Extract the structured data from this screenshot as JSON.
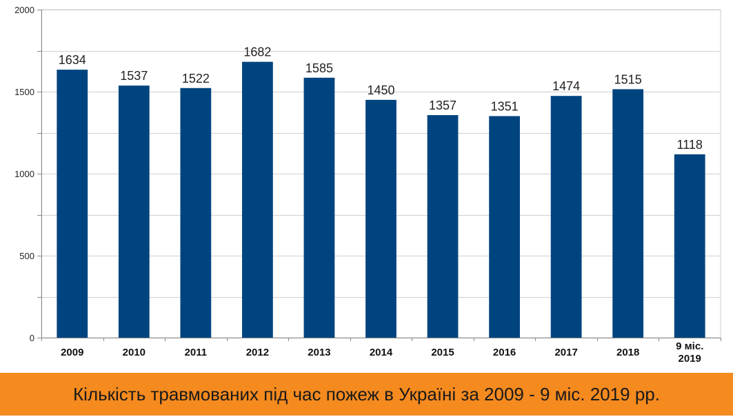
{
  "caption": {
    "text": "Кількість травмованих під час пожеж в Україні за 2009 - 9 міс. 2019 рр.",
    "background_color": "#f58a1f"
  },
  "chart_data": {
    "type": "bar",
    "categories": [
      "2009",
      "2010",
      "2011",
      "2012",
      "2013",
      "2014",
      "2015",
      "2016",
      "2017",
      "2018",
      "9 міс. 2019"
    ],
    "values": [
      1634,
      1537,
      1522,
      1682,
      1585,
      1450,
      1357,
      1351,
      1474,
      1515,
      1118
    ],
    "title": "",
    "xlabel": "",
    "ylabel": "",
    "ylim": [
      0,
      2000
    ],
    "yticks": [
      "0",
      "500",
      "1000",
      "1500",
      "2000"
    ],
    "grid": true,
    "legend": "none",
    "bar_color": "#00447f",
    "grid_color": "#cfcfcf"
  }
}
